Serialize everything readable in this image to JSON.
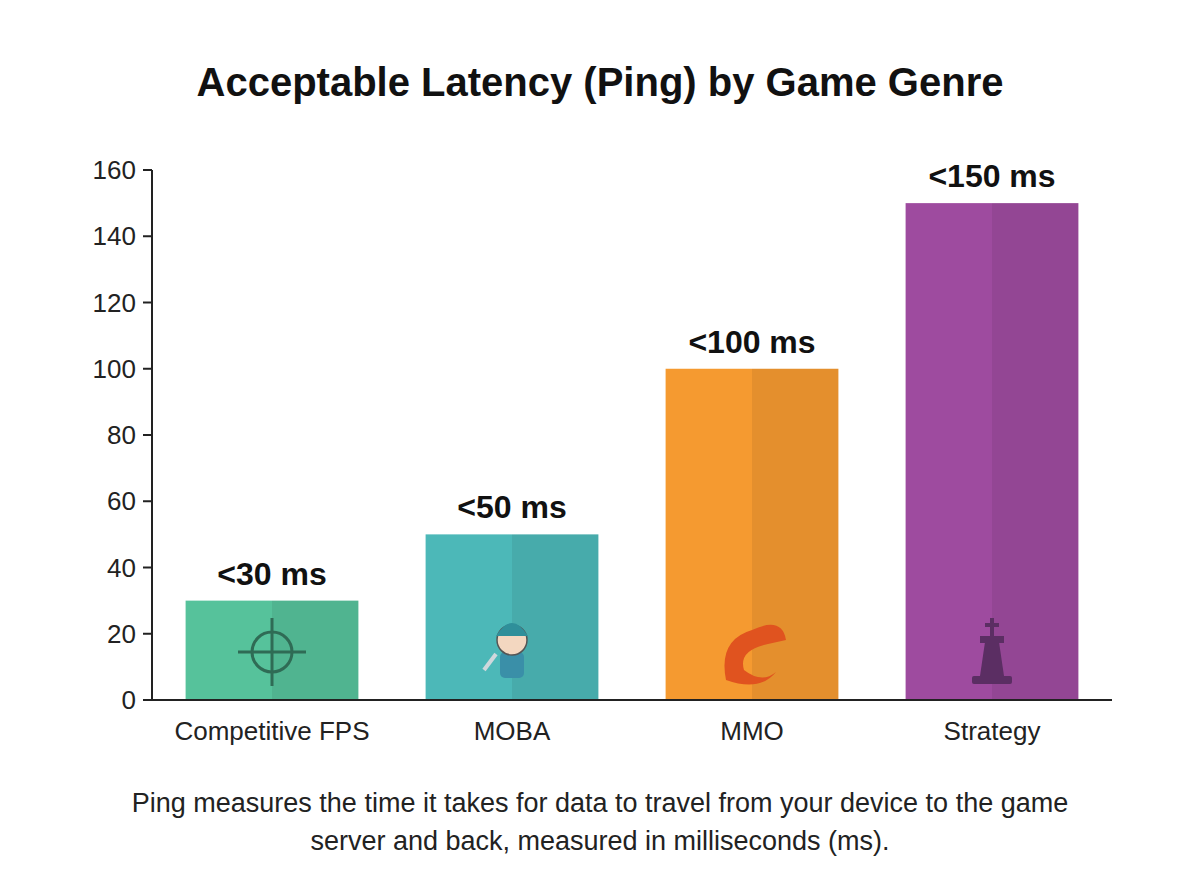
{
  "chart_data": {
    "type": "bar",
    "title": "Acceptable Latency (Ping) by Game Genre",
    "categories": [
      "Competitive FPS",
      "MOBA",
      "MMO",
      "Strategy"
    ],
    "values": [
      30,
      50,
      100,
      150
    ],
    "value_labels": [
      "<30 ms",
      "<50 ms",
      "<100 ms",
      "<150 ms"
    ],
    "colors": [
      "#56c29b",
      "#4cb8b8",
      "#f59a30",
      "#9e4b9f"
    ],
    "ylim": [
      0,
      160
    ],
    "yticks": [
      0,
      20,
      40,
      60,
      80,
      100,
      120,
      140,
      160
    ],
    "grid": false,
    "data_labels": true,
    "annotation": "Ping measures the time it takes for data to travel from your device to the game server and back, measured in milliseconds (ms)."
  }
}
